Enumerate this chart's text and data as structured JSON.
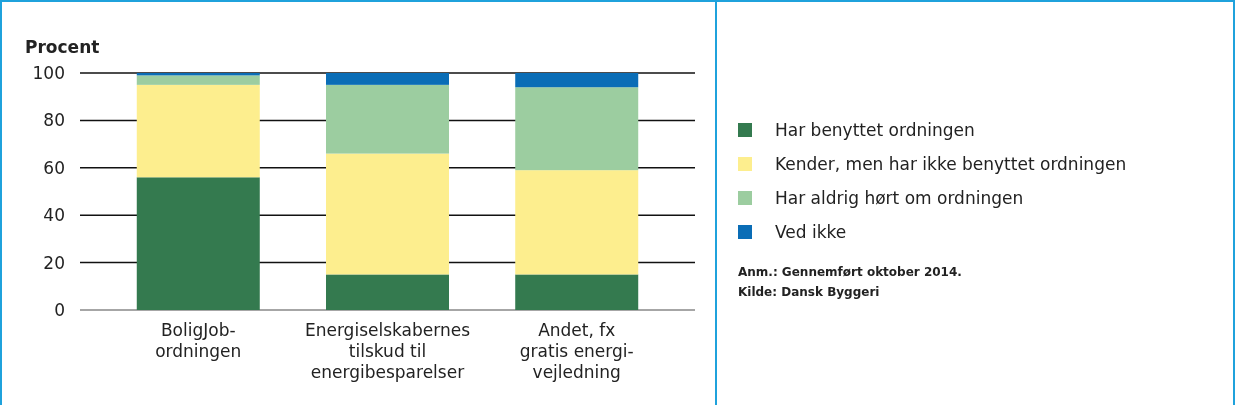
{
  "chart_data": {
    "type": "bar",
    "stacked": true,
    "ylabel": "Procent",
    "categories": [
      "BoligJob-\nordningen",
      "Energiselskabernes\ntilskud til\nenergibesparelser",
      "Andet, fx\ngratis energi-\nvejledning"
    ],
    "series": [
      {
        "name": "Har benyttet ordningen",
        "color": "#347a4f",
        "values": [
          56,
          15,
          15
        ]
      },
      {
        "name": "Kender, men har ikke benyttet ordningen",
        "color": "#fdee8e",
        "values": [
          39,
          51,
          44
        ]
      },
      {
        "name": "Har aldrig hørt om ordningen",
        "color": "#9ccda0",
        "values": [
          4,
          29,
          35
        ]
      },
      {
        "name": "Ved ikke",
        "color": "#0a6db6",
        "values": [
          1,
          5,
          6
        ]
      }
    ],
    "ylim": [
      0,
      100
    ],
    "yticks": [
      0,
      20,
      40,
      60,
      80,
      100
    ],
    "grid": "y",
    "legend": "right",
    "annotations": [
      "Anm.: Gennemført oktober 2014.",
      "Kilde: Dansk Byggeri"
    ]
  }
}
